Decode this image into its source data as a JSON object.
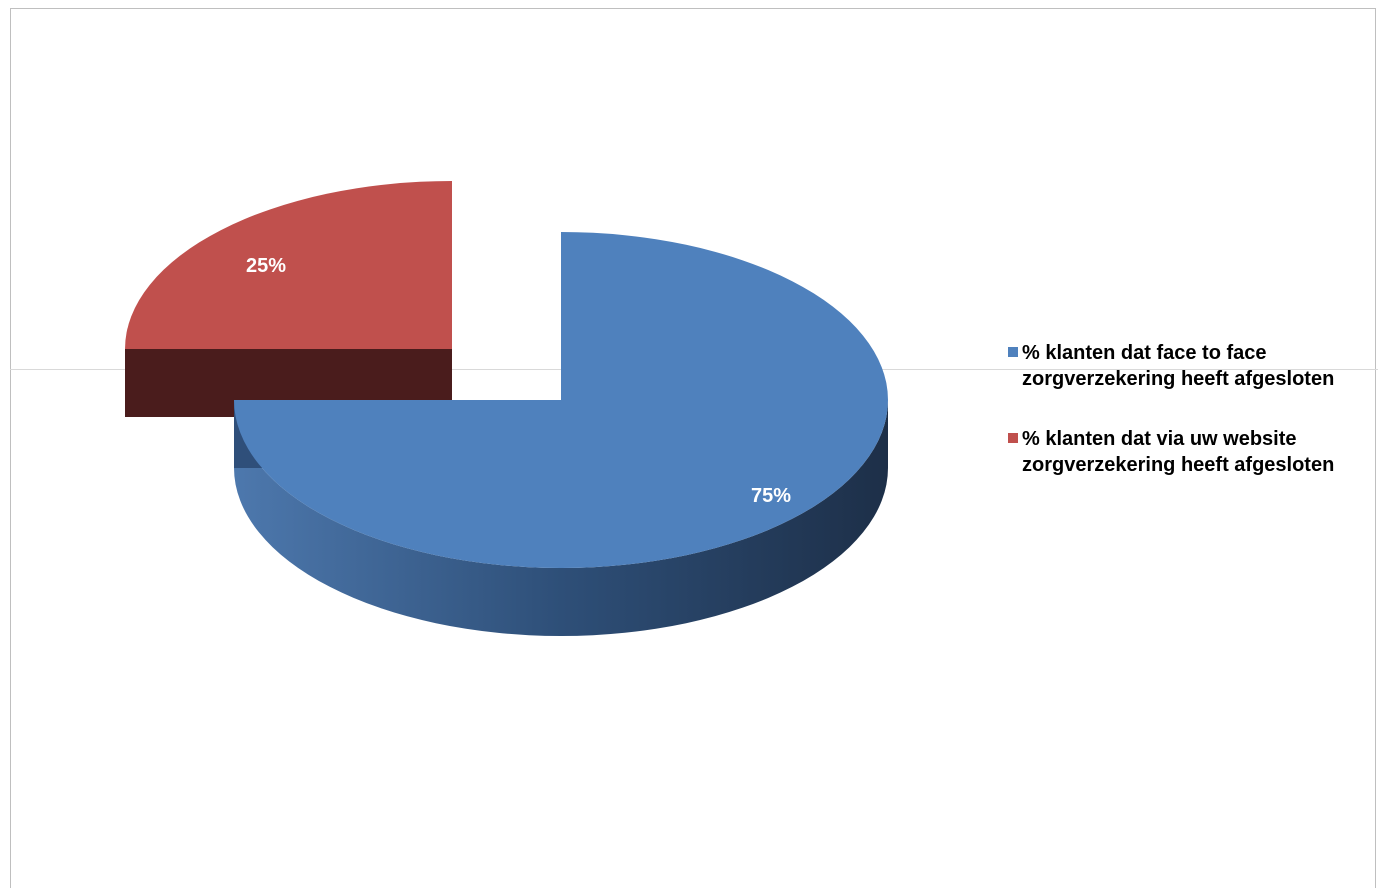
{
  "chart_data": {
    "type": "pie",
    "title": "",
    "categories": [
      "% klanten dat face to face zorgverzekering heeft afgesloten",
      "% klanten dat via uw website zorgverzekering heeft afgesloten"
    ],
    "values": [
      75,
      25
    ],
    "data_labels": [
      "75%",
      "25%"
    ],
    "colors": [
      "#4f81bd",
      "#c0504d"
    ],
    "side_colors": [
      "#2a4a73",
      "#4a1c1c"
    ],
    "legend_position": "right",
    "style": "3d-exploded"
  },
  "legend": {
    "items": [
      {
        "label": "% klanten dat face to face zorgverzekering heeft afgesloten",
        "color": "#4f81bd"
      },
      {
        "label": "% klanten dat via uw website zorgverzekering heeft afgesloten",
        "color": "#c0504d"
      }
    ]
  }
}
